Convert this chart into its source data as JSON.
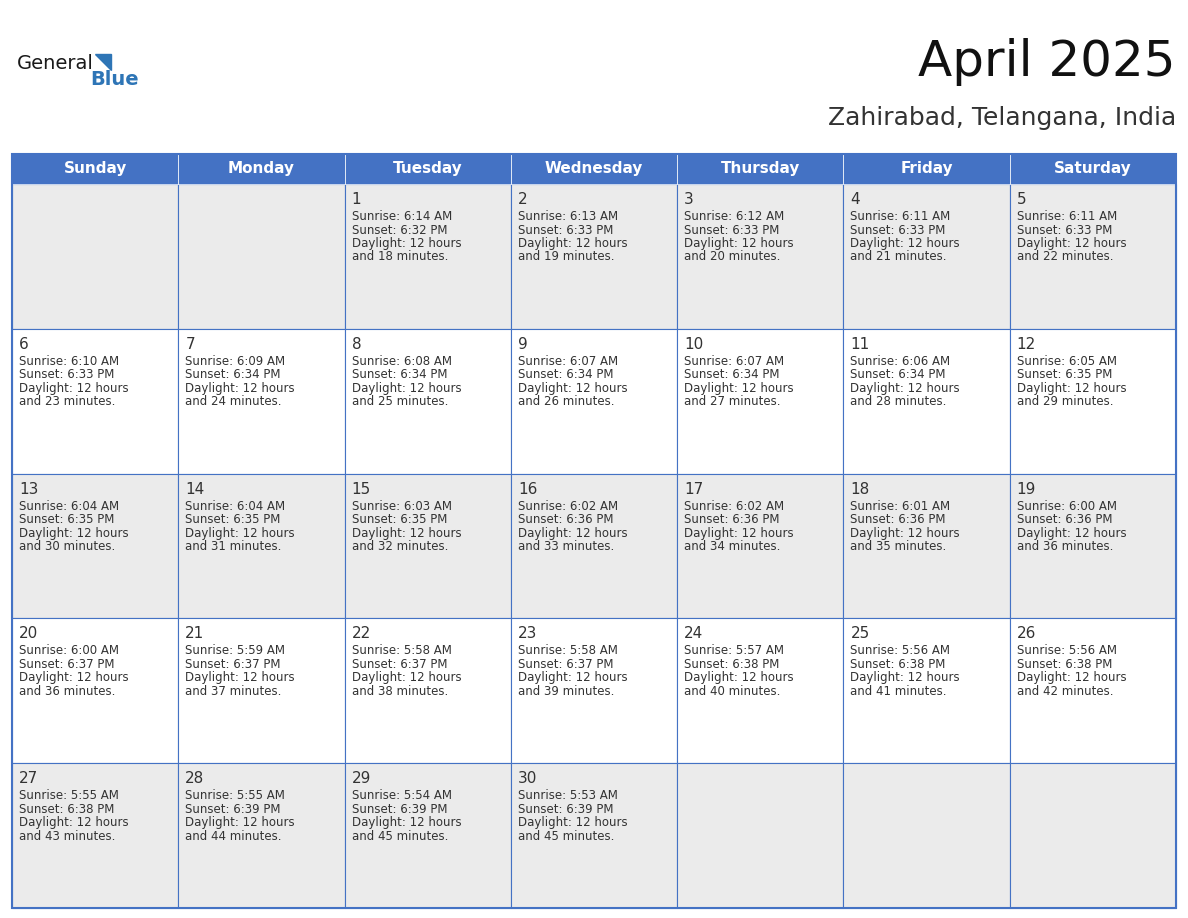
{
  "title": "April 2025",
  "subtitle": "Zahirabad, Telangana, India",
  "header_bg_color": "#4472C4",
  "header_text_color": "#FFFFFF",
  "odd_row_bg": "#EBEBEB",
  "even_row_bg": "#FFFFFF",
  "border_color": "#4472C4",
  "text_color": "#333333",
  "days_of_week": [
    "Sunday",
    "Monday",
    "Tuesday",
    "Wednesday",
    "Thursday",
    "Friday",
    "Saturday"
  ],
  "calendar_data": [
    [
      {
        "day": "",
        "sunrise": "",
        "sunset": "",
        "daylight": ""
      },
      {
        "day": "",
        "sunrise": "",
        "sunset": "",
        "daylight": ""
      },
      {
        "day": "1",
        "sunrise": "6:14 AM",
        "sunset": "6:32 PM",
        "daylight": "12 hours and 18 minutes."
      },
      {
        "day": "2",
        "sunrise": "6:13 AM",
        "sunset": "6:33 PM",
        "daylight": "12 hours and 19 minutes."
      },
      {
        "day": "3",
        "sunrise": "6:12 AM",
        "sunset": "6:33 PM",
        "daylight": "12 hours and 20 minutes."
      },
      {
        "day": "4",
        "sunrise": "6:11 AM",
        "sunset": "6:33 PM",
        "daylight": "12 hours and 21 minutes."
      },
      {
        "day": "5",
        "sunrise": "6:11 AM",
        "sunset": "6:33 PM",
        "daylight": "12 hours and 22 minutes."
      }
    ],
    [
      {
        "day": "6",
        "sunrise": "6:10 AM",
        "sunset": "6:33 PM",
        "daylight": "12 hours and 23 minutes."
      },
      {
        "day": "7",
        "sunrise": "6:09 AM",
        "sunset": "6:34 PM",
        "daylight": "12 hours and 24 minutes."
      },
      {
        "day": "8",
        "sunrise": "6:08 AM",
        "sunset": "6:34 PM",
        "daylight": "12 hours and 25 minutes."
      },
      {
        "day": "9",
        "sunrise": "6:07 AM",
        "sunset": "6:34 PM",
        "daylight": "12 hours and 26 minutes."
      },
      {
        "day": "10",
        "sunrise": "6:07 AM",
        "sunset": "6:34 PM",
        "daylight": "12 hours and 27 minutes."
      },
      {
        "day": "11",
        "sunrise": "6:06 AM",
        "sunset": "6:34 PM",
        "daylight": "12 hours and 28 minutes."
      },
      {
        "day": "12",
        "sunrise": "6:05 AM",
        "sunset": "6:35 PM",
        "daylight": "12 hours and 29 minutes."
      }
    ],
    [
      {
        "day": "13",
        "sunrise": "6:04 AM",
        "sunset": "6:35 PM",
        "daylight": "12 hours and 30 minutes."
      },
      {
        "day": "14",
        "sunrise": "6:04 AM",
        "sunset": "6:35 PM",
        "daylight": "12 hours and 31 minutes."
      },
      {
        "day": "15",
        "sunrise": "6:03 AM",
        "sunset": "6:35 PM",
        "daylight": "12 hours and 32 minutes."
      },
      {
        "day": "16",
        "sunrise": "6:02 AM",
        "sunset": "6:36 PM",
        "daylight": "12 hours and 33 minutes."
      },
      {
        "day": "17",
        "sunrise": "6:02 AM",
        "sunset": "6:36 PM",
        "daylight": "12 hours and 34 minutes."
      },
      {
        "day": "18",
        "sunrise": "6:01 AM",
        "sunset": "6:36 PM",
        "daylight": "12 hours and 35 minutes."
      },
      {
        "day": "19",
        "sunrise": "6:00 AM",
        "sunset": "6:36 PM",
        "daylight": "12 hours and 36 minutes."
      }
    ],
    [
      {
        "day": "20",
        "sunrise": "6:00 AM",
        "sunset": "6:37 PM",
        "daylight": "12 hours and 36 minutes."
      },
      {
        "day": "21",
        "sunrise": "5:59 AM",
        "sunset": "6:37 PM",
        "daylight": "12 hours and 37 minutes."
      },
      {
        "day": "22",
        "sunrise": "5:58 AM",
        "sunset": "6:37 PM",
        "daylight": "12 hours and 38 minutes."
      },
      {
        "day": "23",
        "sunrise": "5:58 AM",
        "sunset": "6:37 PM",
        "daylight": "12 hours and 39 minutes."
      },
      {
        "day": "24",
        "sunrise": "5:57 AM",
        "sunset": "6:38 PM",
        "daylight": "12 hours and 40 minutes."
      },
      {
        "day": "25",
        "sunrise": "5:56 AM",
        "sunset": "6:38 PM",
        "daylight": "12 hours and 41 minutes."
      },
      {
        "day": "26",
        "sunrise": "5:56 AM",
        "sunset": "6:38 PM",
        "daylight": "12 hours and 42 minutes."
      }
    ],
    [
      {
        "day": "27",
        "sunrise": "5:55 AM",
        "sunset": "6:38 PM",
        "daylight": "12 hours and 43 minutes."
      },
      {
        "day": "28",
        "sunrise": "5:55 AM",
        "sunset": "6:39 PM",
        "daylight": "12 hours and 44 minutes."
      },
      {
        "day": "29",
        "sunrise": "5:54 AM",
        "sunset": "6:39 PM",
        "daylight": "12 hours and 45 minutes."
      },
      {
        "day": "30",
        "sunrise": "5:53 AM",
        "sunset": "6:39 PM",
        "daylight": "12 hours and 45 minutes."
      },
      {
        "day": "",
        "sunrise": "",
        "sunset": "",
        "daylight": ""
      },
      {
        "day": "",
        "sunrise": "",
        "sunset": "",
        "daylight": ""
      },
      {
        "day": "",
        "sunrise": "",
        "sunset": "",
        "daylight": ""
      }
    ]
  ],
  "logo_color_general": "#1a1a1a",
  "logo_color_blue": "#2E75B6",
  "logo_triangle_color": "#2E75B6",
  "title_fontsize": 36,
  "subtitle_fontsize": 18,
  "header_fontsize": 11,
  "day_number_fontsize": 11,
  "cell_text_fontsize": 8.5
}
